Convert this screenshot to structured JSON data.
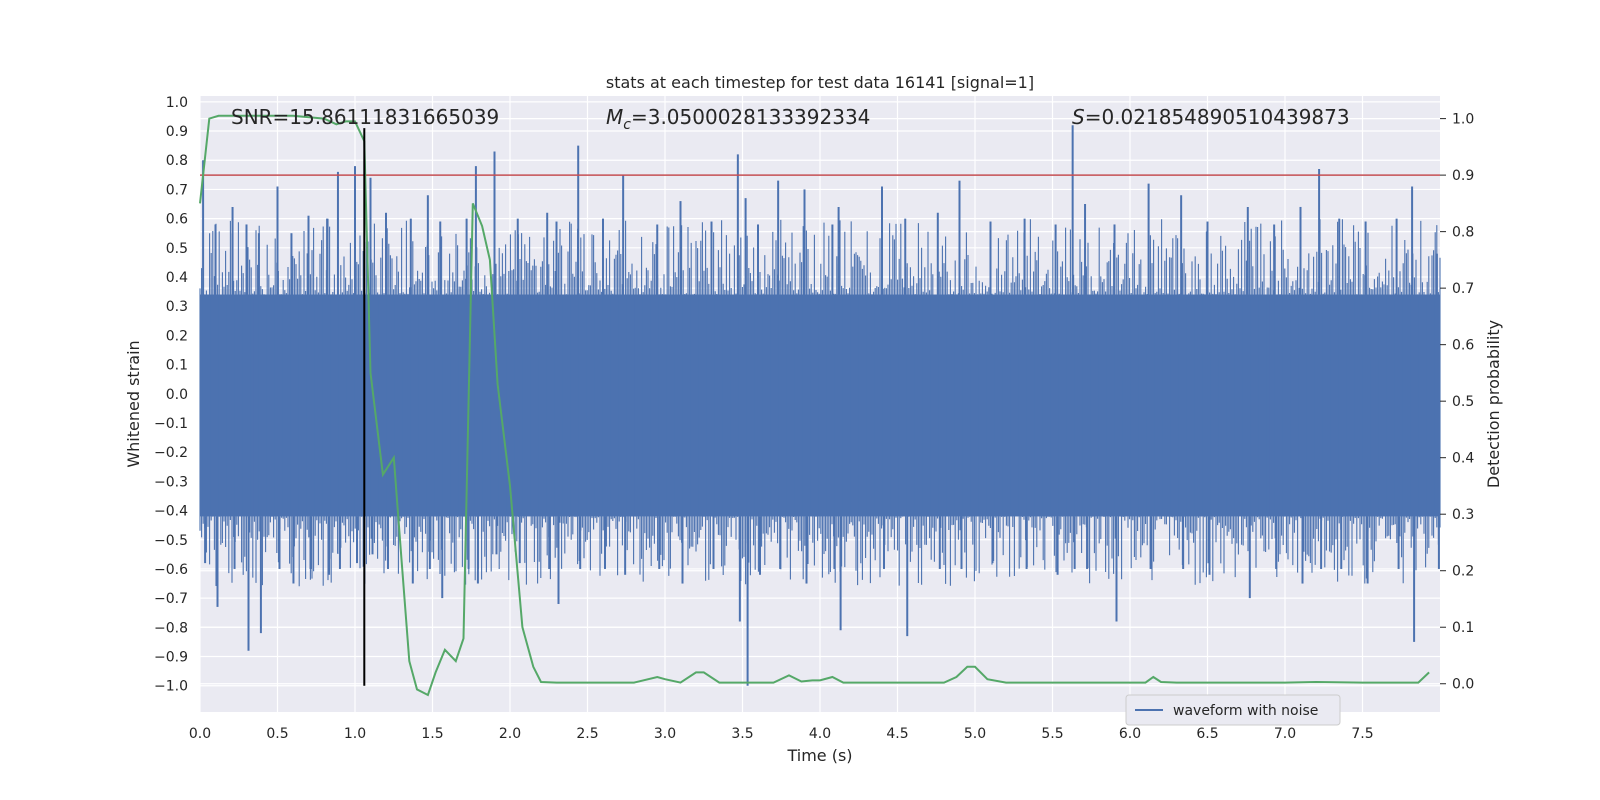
{
  "chart_data": {
    "type": "line",
    "title": "stats at each timestep for test data 16141 [signal=1]",
    "xlabel": "Time (s)",
    "ylabel": "Whitened strain",
    "y2label": "Detection probability",
    "xlim": [
      0.0,
      8.0
    ],
    "ylim": [
      -1.09,
      1.02
    ],
    "y2lim": [
      -0.05,
      1.04
    ],
    "xticks": [
      0.0,
      0.5,
      1.0,
      1.5,
      2.0,
      2.5,
      3.0,
      3.5,
      4.0,
      4.5,
      5.0,
      5.5,
      6.0,
      6.5,
      7.0,
      7.5
    ],
    "yticks": [
      -1.0,
      -0.9,
      -0.8,
      -0.7,
      -0.6,
      -0.5,
      -0.4,
      -0.3,
      -0.2,
      -0.1,
      0.0,
      0.1,
      0.2,
      0.3,
      0.4,
      0.5,
      0.6,
      0.7,
      0.8,
      0.9,
      1.0
    ],
    "y2ticks": [
      0.0,
      0.1,
      0.2,
      0.3,
      0.4,
      0.5,
      0.6,
      0.7,
      0.8,
      0.9,
      1.0
    ],
    "grid": true,
    "legend_position": "lower-right",
    "annotations": {
      "snr": "SNR=15.86111831665039",
      "mc_symbol": "M",
      "mc_sub": "c",
      "mc_value": "=3.0500028133392334",
      "s_symbol": "S",
      "s_value": "=0.021854890510439873"
    },
    "threshold_right_axis": 0.9,
    "event_line": {
      "x": 1.06,
      "y_from": -1.0,
      "y_to": 0.91
    },
    "series": [
      {
        "name": "waveform with noise",
        "color": "#4c72b0",
        "axis": "left",
        "note": "dense whitened noise envelope; sampled peaks listed",
        "peak_x": [
          0.02,
          0.1,
          0.21,
          0.3,
          0.38,
          0.5,
          0.59,
          0.7,
          0.82,
          0.89,
          1.0,
          1.1,
          1.2,
          1.36,
          1.47,
          1.55,
          1.72,
          1.78,
          1.9,
          2.05,
          2.24,
          2.3,
          2.44,
          2.6,
          2.73,
          2.95,
          3.1,
          3.3,
          3.47,
          3.52,
          3.6,
          3.73,
          3.9,
          4.08,
          4.12,
          4.4,
          4.55,
          4.76,
          4.9,
          5.1,
          5.32,
          5.52,
          5.63,
          5.71,
          5.9,
          6.12,
          6.33,
          6.5,
          6.76,
          6.93,
          7.1,
          7.22,
          7.35,
          7.52,
          7.72,
          7.82,
          7.98
        ],
        "peak_hi": [
          0.8,
          0.58,
          0.64,
          0.58,
          0.55,
          0.71,
          0.55,
          0.61,
          0.6,
          0.76,
          0.78,
          0.74,
          0.62,
          0.6,
          0.68,
          0.59,
          0.6,
          0.78,
          0.83,
          0.6,
          0.62,
          0.59,
          0.85,
          0.6,
          0.75,
          0.58,
          0.66,
          0.59,
          0.82,
          0.67,
          0.58,
          0.73,
          0.7,
          0.58,
          0.64,
          0.71,
          0.6,
          0.62,
          0.73,
          0.59,
          0.6,
          0.58,
          0.92,
          0.65,
          0.58,
          0.72,
          0.68,
          0.59,
          0.64,
          0.58,
          0.64,
          0.77,
          0.6,
          0.59,
          0.6,
          0.71,
          0.48
        ],
        "peak_lo": [
          -0.58,
          -0.73,
          -0.6,
          -0.88,
          -0.82,
          -0.6,
          -0.65,
          -0.6,
          -0.62,
          -0.6,
          -0.58,
          -0.55,
          -0.6,
          -0.65,
          -0.6,
          -0.7,
          -0.6,
          -0.65,
          -0.55,
          -0.58,
          -0.6,
          -0.72,
          -0.6,
          -0.6,
          -0.62,
          -0.6,
          -0.65,
          -0.6,
          -0.78,
          -1.0,
          -0.62,
          -0.6,
          -0.65,
          -0.6,
          -0.81,
          -0.6,
          -0.83,
          -0.6,
          -0.6,
          -0.58,
          -0.6,
          -0.62,
          -0.6,
          -0.6,
          -0.78,
          -0.6,
          -0.6,
          -0.62,
          -0.7,
          -0.6,
          -0.65,
          -0.6,
          -0.6,
          -0.65,
          -0.6,
          -0.85,
          -0.6
        ],
        "band_hi": 0.34,
        "band_lo": -0.42
      },
      {
        "color": "#55a868",
        "axis": "right",
        "x": [
          0.0,
          0.06,
          0.12,
          0.25,
          0.4,
          0.6,
          0.8,
          0.88,
          0.94,
          1.0,
          1.06,
          1.1,
          1.18,
          1.25,
          1.3,
          1.35,
          1.4,
          1.47,
          1.52,
          1.58,
          1.65,
          1.7,
          1.76,
          1.82,
          1.87,
          1.92,
          2.0,
          2.08,
          2.15,
          2.2,
          2.3,
          2.5,
          2.8,
          2.95,
          3.0,
          3.1,
          3.2,
          3.25,
          3.35,
          3.45,
          3.55,
          3.7,
          3.8,
          3.88,
          3.95,
          4.0,
          4.08,
          4.15,
          4.25,
          4.5,
          4.8,
          4.88,
          4.95,
          5.0,
          5.08,
          5.2,
          5.4,
          5.8,
          6.1,
          6.15,
          6.2,
          6.3,
          6.6,
          7.0,
          7.2,
          7.5,
          7.7,
          7.8,
          7.86,
          7.93
        ],
        "values": [
          0.85,
          1.0,
          1.005,
          1.005,
          1.005,
          1.005,
          1.0,
          0.99,
          0.995,
          0.995,
          0.96,
          0.55,
          0.37,
          0.4,
          0.22,
          0.04,
          -0.01,
          -0.02,
          0.02,
          0.06,
          0.04,
          0.08,
          0.85,
          0.81,
          0.75,
          0.53,
          0.35,
          0.1,
          0.03,
          0.003,
          0.002,
          0.002,
          0.002,
          0.012,
          0.008,
          0.002,
          0.02,
          0.02,
          0.002,
          0.002,
          0.002,
          0.002,
          0.015,
          0.004,
          0.006,
          0.006,
          0.012,
          0.002,
          0.002,
          0.002,
          0.002,
          0.012,
          0.03,
          0.03,
          0.008,
          0.002,
          0.002,
          0.002,
          0.002,
          0.012,
          0.003,
          0.002,
          0.002,
          0.002,
          0.003,
          0.002,
          0.002,
          0.002,
          0.002,
          0.02
        ]
      }
    ],
    "colors": {
      "background": "#eaeaf2",
      "grid": "#ffffff",
      "threshold": "#c44e52",
      "event_line": "#000000"
    }
  }
}
